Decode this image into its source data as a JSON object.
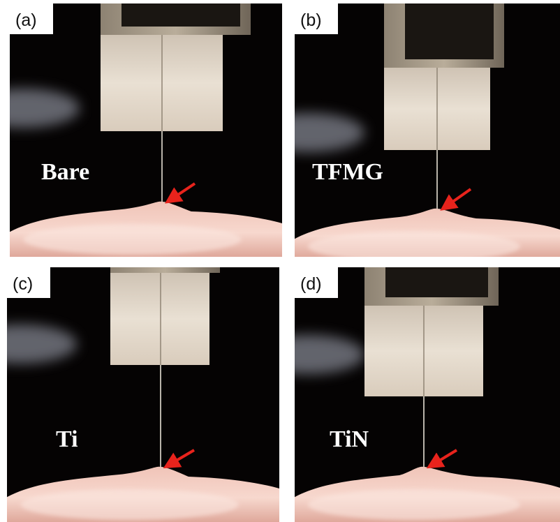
{
  "panels": [
    {
      "label": "(a)",
      "caption": "Bare"
    },
    {
      "label": "(b)",
      "caption": "TFMG"
    },
    {
      "label": "(c)",
      "caption": "Ti"
    },
    {
      "label": "(d)",
      "caption": "TiN"
    }
  ]
}
